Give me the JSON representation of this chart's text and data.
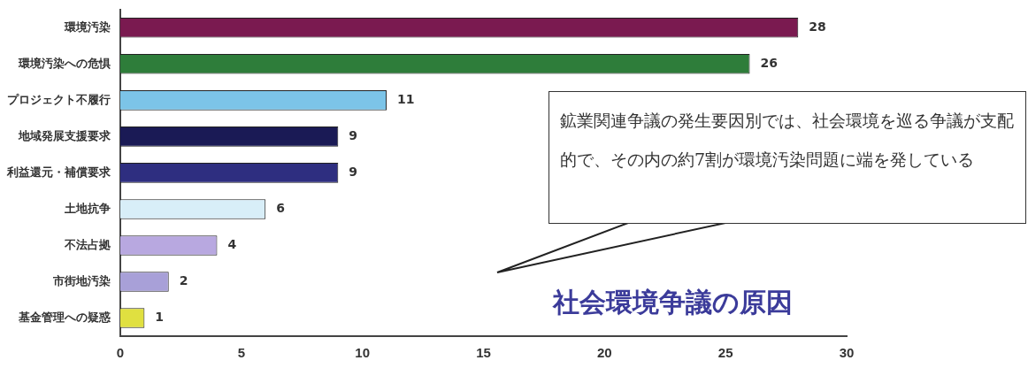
{
  "chart_data": {
    "type": "bar",
    "orientation": "horizontal",
    "title": "社会環境争議の原因",
    "categories": [
      "環境汚染",
      "環境汚染への危惧",
      "プロジェクト不履行",
      "地域発展支援要求",
      "利益還元・補償要求",
      "土地抗争",
      "不法占拠",
      "市街地汚染",
      "基金管理への疑惑"
    ],
    "values": [
      28,
      26,
      11,
      9,
      9,
      6,
      4,
      2,
      1
    ],
    "colors": [
      "#7a1a50",
      "#2e7d3a",
      "#7cc4e8",
      "#1a1a55",
      "#2e2e80",
      "#d8eef8",
      "#b8a8e0",
      "#a8a0d8",
      "#e0e040"
    ],
    "xlim": [
      0,
      30
    ],
    "xticks": [
      0,
      5,
      10,
      15,
      20,
      25,
      30
    ],
    "data_labels": true,
    "grid": false,
    "legend": false,
    "annotations": [
      "鉱業関連争議の発生要因別では、社会環境を巡る争議が支配的で、その内の約7割が環境汚染問題に端を発している"
    ]
  }
}
